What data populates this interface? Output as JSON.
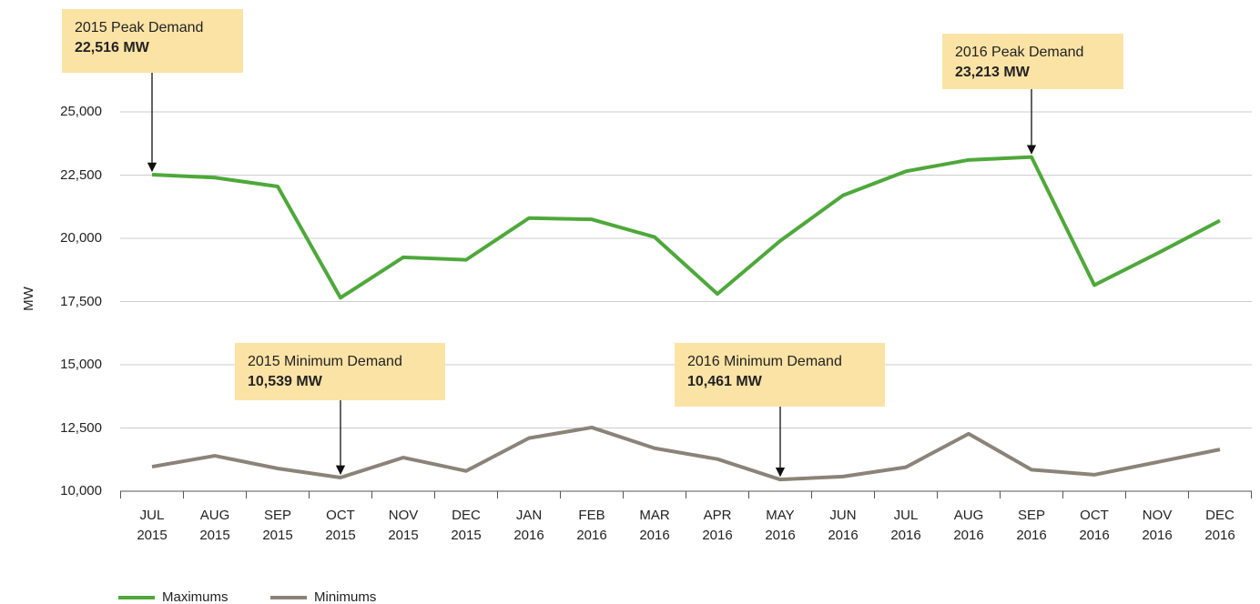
{
  "chart_data": {
    "type": "line",
    "y_label": "MW",
    "categories": [
      "JUL 2015",
      "AUG 2015",
      "SEP 2015",
      "OCT 2015",
      "NOV 2015",
      "DEC 2015",
      "JAN 2016",
      "FEB 2016",
      "MAR 2016",
      "APR 2016",
      "MAY 2016",
      "JUN 2016",
      "JUL 2016",
      "AUG 2016",
      "SEP 2016",
      "OCT 2016",
      "NOV 2016",
      "DEC 2016"
    ],
    "series": [
      {
        "name": "Maximums",
        "color": "#4ea83a",
        "values": [
          22516,
          22400,
          22050,
          17650,
          19250,
          19150,
          20800,
          20750,
          20050,
          17800,
          19900,
          21700,
          22650,
          23100,
          23213,
          18150,
          19400,
          20700
        ],
        "value_labels": [
          "22,516 MW",
          null,
          null,
          null,
          null,
          null,
          null,
          null,
          null,
          null,
          null,
          null,
          null,
          null,
          "23,213 MW",
          null,
          null,
          null
        ],
        "annotations": [
          "2015 Peak Demand",
          null,
          null,
          null,
          null,
          null,
          null,
          null,
          null,
          null,
          null,
          null,
          null,
          null,
          "2016 Peak Demand",
          null,
          null,
          null
        ]
      },
      {
        "name": "Minimums",
        "color": "#8b8378",
        "values": [
          10970,
          11400,
          10900,
          10539,
          11330,
          10800,
          12100,
          12520,
          11700,
          11270,
          10461,
          10580,
          10950,
          12270,
          10850,
          10650,
          11150,
          11650
        ],
        "value_labels": [
          null,
          null,
          null,
          "10,539 MW",
          null,
          null,
          null,
          null,
          null,
          null,
          "10,461 MW",
          null,
          null,
          null,
          null,
          null,
          null,
          null
        ],
        "annotations": [
          null,
          null,
          null,
          "2015 Minimum Demand",
          null,
          null,
          null,
          null,
          null,
          null,
          "2016 Minimum Demand",
          null,
          null,
          null,
          null,
          null,
          null,
          null
        ]
      }
    ],
    "ylim": [
      10000,
      25000
    ],
    "yticks": [
      {
        "value": 10000,
        "label": "10,000"
      },
      {
        "value": 12500,
        "label": "12,500"
      },
      {
        "value": 15000,
        "label": "15,000"
      },
      {
        "value": 17500,
        "label": "17,500"
      },
      {
        "value": 20000,
        "label": "20,000"
      },
      {
        "value": 22500,
        "label": "22,500"
      },
      {
        "value": 25000,
        "label": "25,000"
      }
    ],
    "grid": true,
    "legend": "bottom-left"
  }
}
